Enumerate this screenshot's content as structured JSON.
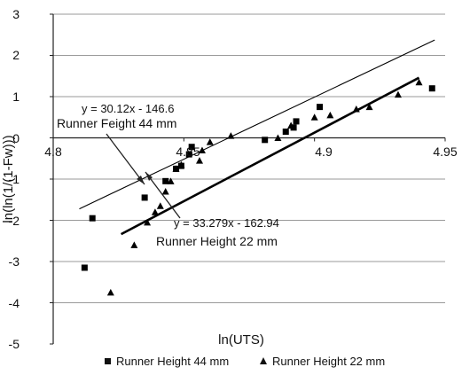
{
  "chart_data": {
    "type": "scatter",
    "xlabel": "ln(UTS)",
    "ylabel": "ln(ln(1/(1-Fw)))",
    "xlim": [
      4.8,
      4.95
    ],
    "ylim": [
      -5,
      3
    ],
    "x_ticks": [
      "4.8",
      "4.85",
      "4.9",
      "4.95"
    ],
    "y_ticks": [
      "3",
      "2",
      "1",
      "0",
      "-1",
      "-2",
      "-3",
      "-4",
      "-5"
    ],
    "grid": "horizontal",
    "legend_position": "bottom",
    "series": [
      {
        "name": "Runner Height 44 mm",
        "marker": "square",
        "x": [
          4.812,
          4.815,
          4.835,
          4.843,
          4.847,
          4.849,
          4.852,
          4.853,
          4.881,
          4.889,
          4.892,
          4.893,
          4.902,
          4.945
        ],
        "y": [
          -3.15,
          -1.95,
          -1.45,
          -1.05,
          -0.75,
          -0.68,
          -0.4,
          -0.22,
          -0.05,
          0.15,
          0.25,
          0.4,
          0.75,
          1.2
        ]
      },
      {
        "name": "Runner Height 22 mm",
        "marker": "triangle",
        "x": [
          4.822,
          4.831,
          4.836,
          4.839,
          4.841,
          4.843,
          4.845,
          4.847,
          4.849,
          4.856,
          4.857,
          4.86,
          4.868,
          4.886,
          4.891,
          4.9,
          4.906,
          4.916,
          4.921,
          4.932,
          4.94
        ],
        "y": [
          -3.75,
          -2.6,
          -2.05,
          -1.8,
          -1.65,
          -1.3,
          -1.05,
          -0.75,
          -0.65,
          -0.55,
          -0.3,
          -0.1,
          0.05,
          0.0,
          0.3,
          0.5,
          0.55,
          0.7,
          0.75,
          1.05,
          1.35
        ]
      }
    ],
    "trendlines": [
      {
        "series": "Runner Height 44 mm",
        "slope": 30.12,
        "intercept": -146.6,
        "x_range": [
          4.81,
          4.946
        ],
        "style": "thin"
      },
      {
        "series": "Runner Height 22 mm",
        "slope": 33.279,
        "intercept": -162.94,
        "x_range": [
          4.826,
          4.94
        ],
        "style": "thick"
      }
    ],
    "annotations": [
      {
        "equation": "y = 30.12x - 146.6",
        "label": "Runner Feight 44 mm"
      },
      {
        "equation": "y = 33.279x - 162.94",
        "label": "Runner Height 22 mm"
      }
    ],
    "legend": [
      {
        "marker": "square",
        "label": "Runner Height 44 mm"
      },
      {
        "marker": "triangle",
        "label": "Runner Height 22 mm"
      }
    ]
  }
}
